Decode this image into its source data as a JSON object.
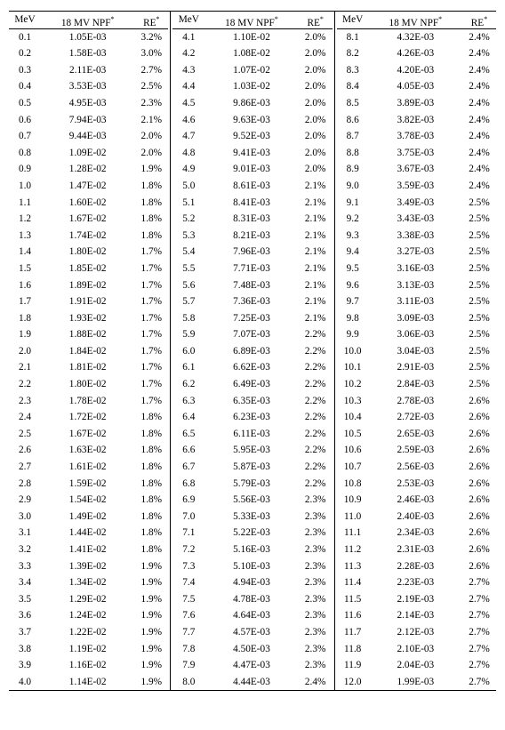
{
  "headers": {
    "mev": "MeV",
    "npf": "18 MV NPF",
    "re": "RE",
    "sup": "*"
  },
  "blocks": [
    [
      {
        "mev": "0.1",
        "npf": "1.05E-03",
        "re": "3.2%"
      },
      {
        "mev": "0.2",
        "npf": "1.58E-03",
        "re": "3.0%"
      },
      {
        "mev": "0.3",
        "npf": "2.11E-03",
        "re": "2.7%"
      },
      {
        "mev": "0.4",
        "npf": "3.53E-03",
        "re": "2.5%"
      },
      {
        "mev": "0.5",
        "npf": "4.95E-03",
        "re": "2.3%"
      },
      {
        "mev": "0.6",
        "npf": "7.94E-03",
        "re": "2.1%"
      },
      {
        "mev": "0.7",
        "npf": "9.44E-03",
        "re": "2.0%"
      },
      {
        "mev": "0.8",
        "npf": "1.09E-02",
        "re": "2.0%"
      },
      {
        "mev": "0.9",
        "npf": "1.28E-02",
        "re": "1.9%"
      },
      {
        "mev": "1.0",
        "npf": "1.47E-02",
        "re": "1.8%"
      },
      {
        "mev": "1.1",
        "npf": "1.60E-02",
        "re": "1.8%"
      },
      {
        "mev": "1.2",
        "npf": "1.67E-02",
        "re": "1.8%"
      },
      {
        "mev": "1.3",
        "npf": "1.74E-02",
        "re": "1.8%"
      },
      {
        "mev": "1.4",
        "npf": "1.80E-02",
        "re": "1.7%"
      },
      {
        "mev": "1.5",
        "npf": "1.85E-02",
        "re": "1.7%"
      },
      {
        "mev": "1.6",
        "npf": "1.89E-02",
        "re": "1.7%"
      },
      {
        "mev": "1.7",
        "npf": "1.91E-02",
        "re": "1.7%"
      },
      {
        "mev": "1.8",
        "npf": "1.93E-02",
        "re": "1.7%"
      },
      {
        "mev": "1.9",
        "npf": "1.88E-02",
        "re": "1.7%"
      },
      {
        "mev": "2.0",
        "npf": "1.84E-02",
        "re": "1.7%"
      },
      {
        "mev": "2.1",
        "npf": "1.81E-02",
        "re": "1.7%"
      },
      {
        "mev": "2.2",
        "npf": "1.80E-02",
        "re": "1.7%"
      },
      {
        "mev": "2.3",
        "npf": "1.78E-02",
        "re": "1.7%"
      },
      {
        "mev": "2.4",
        "npf": "1.72E-02",
        "re": "1.8%"
      },
      {
        "mev": "2.5",
        "npf": "1.67E-02",
        "re": "1.8%"
      },
      {
        "mev": "2.6",
        "npf": "1.63E-02",
        "re": "1.8%"
      },
      {
        "mev": "2.7",
        "npf": "1.61E-02",
        "re": "1.8%"
      },
      {
        "mev": "2.8",
        "npf": "1.59E-02",
        "re": "1.8%"
      },
      {
        "mev": "2.9",
        "npf": "1.54E-02",
        "re": "1.8%"
      },
      {
        "mev": "3.0",
        "npf": "1.49E-02",
        "re": "1.8%"
      },
      {
        "mev": "3.1",
        "npf": "1.44E-02",
        "re": "1.8%"
      },
      {
        "mev": "3.2",
        "npf": "1.41E-02",
        "re": "1.8%"
      },
      {
        "mev": "3.3",
        "npf": "1.39E-02",
        "re": "1.9%"
      },
      {
        "mev": "3.4",
        "npf": "1.34E-02",
        "re": "1.9%"
      },
      {
        "mev": "3.5",
        "npf": "1.29E-02",
        "re": "1.9%"
      },
      {
        "mev": "3.6",
        "npf": "1.24E-02",
        "re": "1.9%"
      },
      {
        "mev": "3.7",
        "npf": "1.22E-02",
        "re": "1.9%"
      },
      {
        "mev": "3.8",
        "npf": "1.19E-02",
        "re": "1.9%"
      },
      {
        "mev": "3.9",
        "npf": "1.16E-02",
        "re": "1.9%"
      },
      {
        "mev": "4.0",
        "npf": "1.14E-02",
        "re": "1.9%"
      }
    ],
    [
      {
        "mev": "4.1",
        "npf": "1.10E-02",
        "re": "2.0%"
      },
      {
        "mev": "4.2",
        "npf": "1.08E-02",
        "re": "2.0%"
      },
      {
        "mev": "4.3",
        "npf": "1.07E-02",
        "re": "2.0%"
      },
      {
        "mev": "4.4",
        "npf": "1.03E-02",
        "re": "2.0%"
      },
      {
        "mev": "4.5",
        "npf": "9.86E-03",
        "re": "2.0%"
      },
      {
        "mev": "4.6",
        "npf": "9.63E-03",
        "re": "2.0%"
      },
      {
        "mev": "4.7",
        "npf": "9.52E-03",
        "re": "2.0%"
      },
      {
        "mev": "4.8",
        "npf": "9.41E-03",
        "re": "2.0%"
      },
      {
        "mev": "4.9",
        "npf": "9.01E-03",
        "re": "2.0%"
      },
      {
        "mev": "5.0",
        "npf": "8.61E-03",
        "re": "2.1%"
      },
      {
        "mev": "5.1",
        "npf": "8.41E-03",
        "re": "2.1%"
      },
      {
        "mev": "5.2",
        "npf": "8.31E-03",
        "re": "2.1%"
      },
      {
        "mev": "5.3",
        "npf": "8.21E-03",
        "re": "2.1%"
      },
      {
        "mev": "5.4",
        "npf": "7.96E-03",
        "re": "2.1%"
      },
      {
        "mev": "5.5",
        "npf": "7.71E-03",
        "re": "2.1%"
      },
      {
        "mev": "5.6",
        "npf": "7.48E-03",
        "re": "2.1%"
      },
      {
        "mev": "5.7",
        "npf": "7.36E-03",
        "re": "2.1%"
      },
      {
        "mev": "5.8",
        "npf": "7.25E-03",
        "re": "2.1%"
      },
      {
        "mev": "5.9",
        "npf": "7.07E-03",
        "re": "2.2%"
      },
      {
        "mev": "6.0",
        "npf": "6.89E-03",
        "re": "2.2%"
      },
      {
        "mev": "6.1",
        "npf": "6.62E-03",
        "re": "2.2%"
      },
      {
        "mev": "6.2",
        "npf": "6.49E-03",
        "re": "2.2%"
      },
      {
        "mev": "6.3",
        "npf": "6.35E-03",
        "re": "2.2%"
      },
      {
        "mev": "6.4",
        "npf": "6.23E-03",
        "re": "2.2%"
      },
      {
        "mev": "6.5",
        "npf": "6.11E-03",
        "re": "2.2%"
      },
      {
        "mev": "6.6",
        "npf": "5.95E-03",
        "re": "2.2%"
      },
      {
        "mev": "6.7",
        "npf": "5.87E-03",
        "re": "2.2%"
      },
      {
        "mev": "6.8",
        "npf": "5.79E-03",
        "re": "2.2%"
      },
      {
        "mev": "6.9",
        "npf": "5.56E-03",
        "re": "2.3%"
      },
      {
        "mev": "7.0",
        "npf": "5.33E-03",
        "re": "2.3%"
      },
      {
        "mev": "7.1",
        "npf": "5.22E-03",
        "re": "2.3%"
      },
      {
        "mev": "7.2",
        "npf": "5.16E-03",
        "re": "2.3%"
      },
      {
        "mev": "7.3",
        "npf": "5.10E-03",
        "re": "2.3%"
      },
      {
        "mev": "7.4",
        "npf": "4.94E-03",
        "re": "2.3%"
      },
      {
        "mev": "7.5",
        "npf": "4.78E-03",
        "re": "2.3%"
      },
      {
        "mev": "7.6",
        "npf": "4.64E-03",
        "re": "2.3%"
      },
      {
        "mev": "7.7",
        "npf": "4.57E-03",
        "re": "2.3%"
      },
      {
        "mev": "7.8",
        "npf": "4.50E-03",
        "re": "2.3%"
      },
      {
        "mev": "7.9",
        "npf": "4.47E-03",
        "re": "2.3%"
      },
      {
        "mev": "8.0",
        "npf": "4.44E-03",
        "re": "2.4%"
      }
    ],
    [
      {
        "mev": "8.1",
        "npf": "4.32E-03",
        "re": "2.4%"
      },
      {
        "mev": "8.2",
        "npf": "4.26E-03",
        "re": "2.4%"
      },
      {
        "mev": "8.3",
        "npf": "4.20E-03",
        "re": "2.4%"
      },
      {
        "mev": "8.4",
        "npf": "4.05E-03",
        "re": "2.4%"
      },
      {
        "mev": "8.5",
        "npf": "3.89E-03",
        "re": "2.4%"
      },
      {
        "mev": "8.6",
        "npf": "3.82E-03",
        "re": "2.4%"
      },
      {
        "mev": "8.7",
        "npf": "3.78E-03",
        "re": "2.4%"
      },
      {
        "mev": "8.8",
        "npf": "3.75E-03",
        "re": "2.4%"
      },
      {
        "mev": "8.9",
        "npf": "3.67E-03",
        "re": "2.4%"
      },
      {
        "mev": "9.0",
        "npf": "3.59E-03",
        "re": "2.4%"
      },
      {
        "mev": "9.1",
        "npf": "3.49E-03",
        "re": "2.5%"
      },
      {
        "mev": "9.2",
        "npf": "3.43E-03",
        "re": "2.5%"
      },
      {
        "mev": "9.3",
        "npf": "3.38E-03",
        "re": "2.5%"
      },
      {
        "mev": "9.4",
        "npf": "3.27E-03",
        "re": "2.5%"
      },
      {
        "mev": "9.5",
        "npf": "3.16E-03",
        "re": "2.5%"
      },
      {
        "mev": "9.6",
        "npf": "3.13E-03",
        "re": "2.5%"
      },
      {
        "mev": "9.7",
        "npf": "3.11E-03",
        "re": "2.5%"
      },
      {
        "mev": "9.8",
        "npf": "3.09E-03",
        "re": "2.5%"
      },
      {
        "mev": "9.9",
        "npf": "3.06E-03",
        "re": "2.5%"
      },
      {
        "mev": "10.0",
        "npf": "3.04E-03",
        "re": "2.5%"
      },
      {
        "mev": "10.1",
        "npf": "2.91E-03",
        "re": "2.5%"
      },
      {
        "mev": "10.2",
        "npf": "2.84E-03",
        "re": "2.5%"
      },
      {
        "mev": "10.3",
        "npf": "2.78E-03",
        "re": "2.6%"
      },
      {
        "mev": "10.4",
        "npf": "2.72E-03",
        "re": "2.6%"
      },
      {
        "mev": "10.5",
        "npf": "2.65E-03",
        "re": "2.6%"
      },
      {
        "mev": "10.6",
        "npf": "2.59E-03",
        "re": "2.6%"
      },
      {
        "mev": "10.7",
        "npf": "2.56E-03",
        "re": "2.6%"
      },
      {
        "mev": "10.8",
        "npf": "2.53E-03",
        "re": "2.6%"
      },
      {
        "mev": "10.9",
        "npf": "2.46E-03",
        "re": "2.6%"
      },
      {
        "mev": "11.0",
        "npf": "2.40E-03",
        "re": "2.6%"
      },
      {
        "mev": "11.1",
        "npf": "2.34E-03",
        "re": "2.6%"
      },
      {
        "mev": "11.2",
        "npf": "2.31E-03",
        "re": "2.6%"
      },
      {
        "mev": "11.3",
        "npf": "2.28E-03",
        "re": "2.6%"
      },
      {
        "mev": "11.4",
        "npf": "2.23E-03",
        "re": "2.7%"
      },
      {
        "mev": "11.5",
        "npf": "2.19E-03",
        "re": "2.7%"
      },
      {
        "mev": "11.6",
        "npf": "2.14E-03",
        "re": "2.7%"
      },
      {
        "mev": "11.7",
        "npf": "2.12E-03",
        "re": "2.7%"
      },
      {
        "mev": "11.8",
        "npf": "2.10E-03",
        "re": "2.7%"
      },
      {
        "mev": "11.9",
        "npf": "2.04E-03",
        "re": "2.7%"
      },
      {
        "mev": "12.0",
        "npf": "1.99E-03",
        "re": "2.7%"
      }
    ]
  ]
}
